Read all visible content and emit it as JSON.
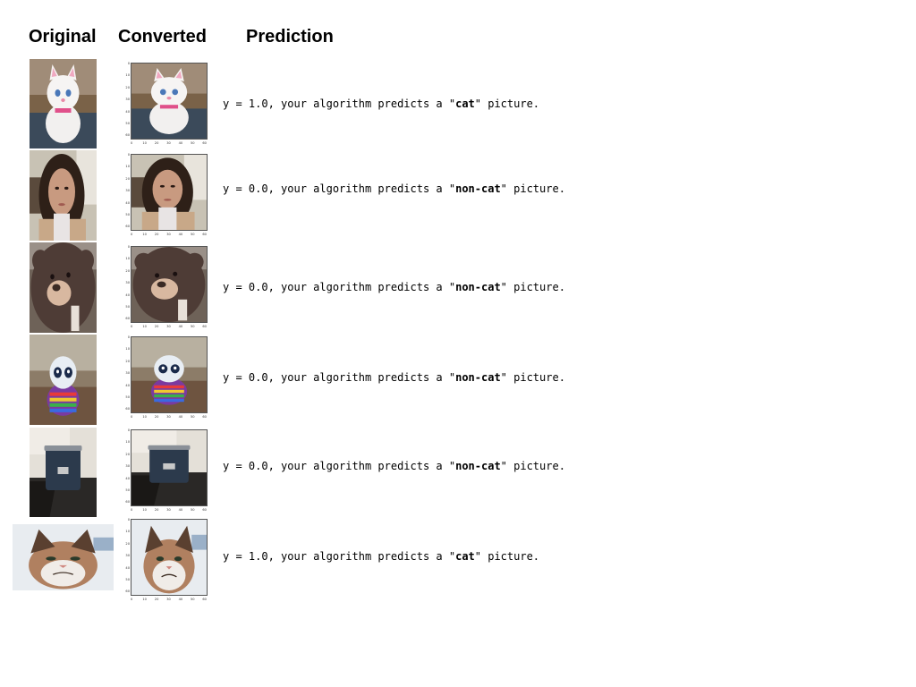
{
  "headers": {
    "original": "Original",
    "converted": "Converted",
    "prediction": "Prediction"
  },
  "axis_ticks": {
    "y": [
      "0",
      "10",
      "20",
      "30",
      "40",
      "50",
      "60"
    ],
    "x": [
      "0",
      "10",
      "20",
      "30",
      "40",
      "50",
      "60"
    ]
  },
  "rows": [
    {
      "subject": "white plush cat toy",
      "prefix": "y = 1.0, your algorithm predicts a \"",
      "label": "cat",
      "suffix": "\" picture."
    },
    {
      "subject": "woman selfie",
      "prefix": "y = 0.0, your algorithm predicts a \"",
      "label": "non-cat",
      "suffix": "\" picture."
    },
    {
      "subject": "brown teddy bear",
      "prefix": "y = 0.0, your algorithm predicts a \"",
      "label": "non-cat",
      "suffix": "\" picture."
    },
    {
      "subject": "rainbow owl plush",
      "prefix": "y = 0.0, your algorithm predicts a \"",
      "label": "non-cat",
      "suffix": "\" picture."
    },
    {
      "subject": "navy tumbler mug",
      "prefix": "y = 0.0, your algorithm predicts a \"",
      "label": "non-cat",
      "suffix": "\" picture."
    },
    {
      "subject": "grumpy cat",
      "prefix": "y = 1.0, your algorithm predicts a \"",
      "label": "cat",
      "suffix": "\" picture."
    }
  ]
}
